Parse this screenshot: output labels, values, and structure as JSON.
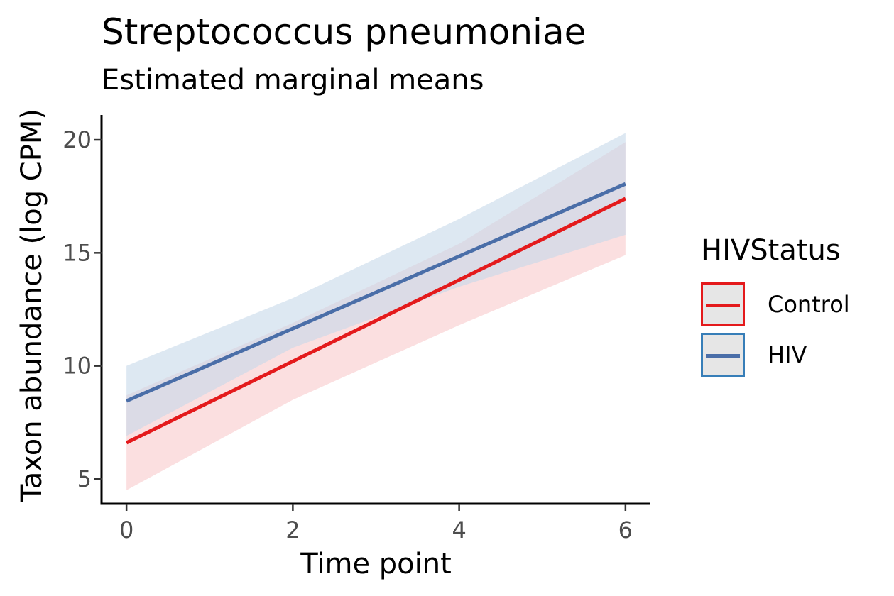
{
  "chart_data": {
    "type": "line",
    "title": "Streptococcus pneumoniae",
    "subtitle": "Estimated marginal means",
    "xlabel": "Time point",
    "ylabel": "Taxon abundance (log CPM)",
    "xlim": [
      -0.3,
      6.3
    ],
    "ylim": [
      3.9,
      21.1
    ],
    "xticks": [
      0,
      2,
      4,
      6
    ],
    "yticks": [
      5,
      10,
      15,
      20
    ],
    "grid": false,
    "legend": {
      "title": "HIVStatus",
      "placement": "right"
    },
    "series": [
      {
        "name": "Control",
        "color": "#e41a1c",
        "ribbon_color": "#f8c9cc",
        "x": [
          0,
          6
        ],
        "y": [
          6.6,
          17.4
        ],
        "lower": [
          4.5,
          14.9
        ],
        "upper": [
          8.7,
          19.9
        ],
        "ribbon_x": [
          0,
          2,
          4,
          6
        ],
        "ribbon_lower": [
          4.5,
          8.5,
          11.8,
          14.9
        ],
        "ribbon_upper": [
          8.7,
          11.9,
          15.4,
          19.9
        ]
      },
      {
        "name": "HIV",
        "color": "#4a6ea8",
        "ribbon_color": "#c6d8ea",
        "x": [
          0,
          6
        ],
        "y": [
          8.45,
          18.05
        ],
        "ribbon_x": [
          0,
          2,
          4,
          6
        ],
        "ribbon_lower": [
          6.9,
          10.8,
          13.5,
          15.8
        ],
        "ribbon_upper": [
          10.0,
          13.0,
          16.5,
          20.3
        ]
      }
    ]
  },
  "legend_keys": {
    "control": {
      "border": "#e41a1c",
      "line": "#e41a1c"
    },
    "hiv": {
      "border": "#377eb8",
      "line": "#4a6ea8"
    }
  }
}
